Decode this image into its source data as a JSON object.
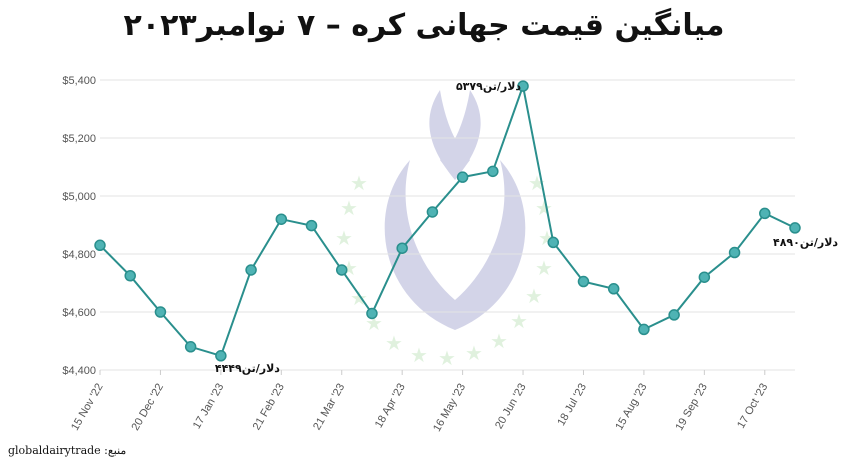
{
  "chart_data": {
    "type": "line",
    "title": "میانگین قیمت جهانی کره – ۷ نوامبر۲۰۲۳",
    "xlabel": "",
    "ylabel": "",
    "ylim": [
      4400,
      5400
    ],
    "grid": true,
    "legend": "none",
    "y_ticks": [
      "$4,400",
      "$4,600",
      "$4,800",
      "$5,000",
      "$5,200",
      "$5,400"
    ],
    "x_tick_labels": [
      "15 Nov '22",
      "20 Dec '22",
      "17 Jan '23",
      "21 Feb '23",
      "21 Mar '23",
      "18 Apr '23",
      "16 May '23",
      "20 Jun '23",
      "18 Jul '23",
      "15 Aug '23",
      "19 Sep '23",
      "17 Oct '23"
    ],
    "x_tick_positions": [
      0,
      2,
      4,
      6,
      8,
      10,
      12,
      14,
      16,
      18,
      20,
      22
    ],
    "series": [
      {
        "values": [
          4830,
          4725,
          4600,
          4480,
          4449,
          4745,
          4920,
          4898,
          4745,
          4595,
          4820,
          4945,
          5065,
          5085,
          5379,
          4840,
          4705,
          4680,
          4540,
          4590,
          4720,
          4805,
          4940,
          4890
        ],
        "color": "#2a8f8d",
        "marker_color": "#4fb3b4"
      }
    ],
    "annotations": [
      {
        "index": 4,
        "text": "۴۴۴۹دلار/تن"
      },
      {
        "index": 14,
        "text": "۵۳۷۹دلار/تن"
      },
      {
        "index": 23,
        "text": "۴۸۹۰دلار/تن"
      }
    ]
  },
  "source": "منبع: globaldairytrade"
}
